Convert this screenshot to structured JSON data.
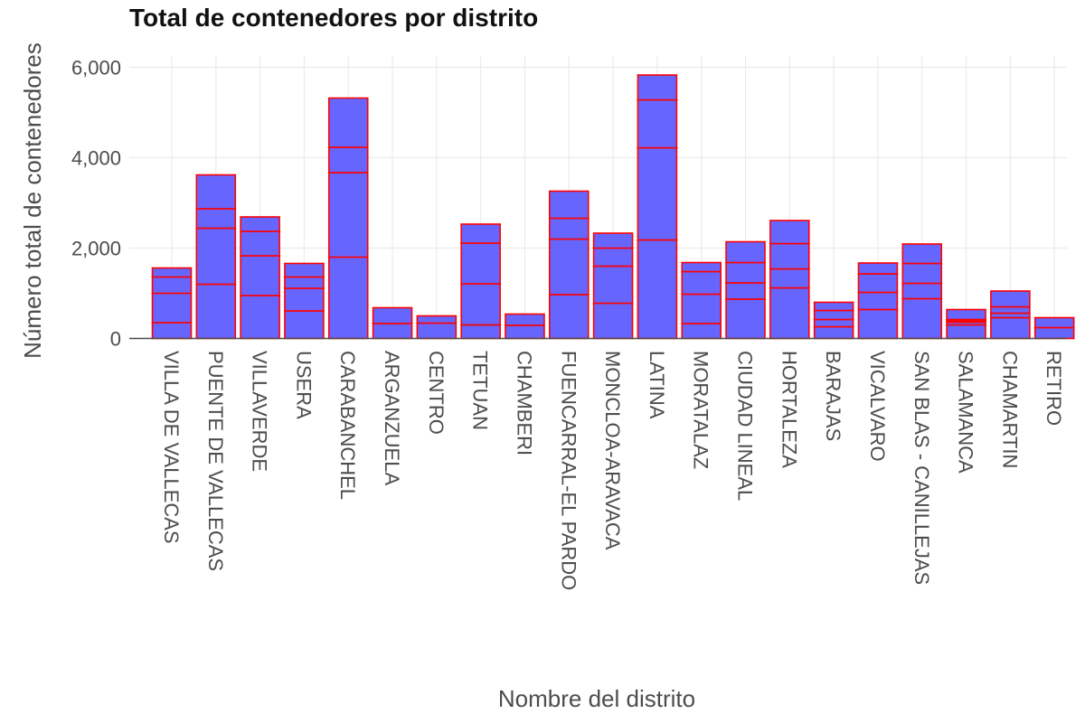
{
  "chart_data": {
    "type": "bar",
    "stacked": true,
    "title": "Total de contenedores por distrito",
    "xlabel": "Nombre del distrito",
    "ylabel": "Número total de contenedores",
    "ylim": [
      0,
      6000
    ],
    "yticks": [
      0,
      2000,
      4000,
      6000
    ],
    "ytick_labels": [
      "0",
      "2,000",
      "4,000",
      "6,000"
    ],
    "grid": true,
    "legend": "none",
    "bar_fill": "#6666ff",
    "bar_outline": "#ff0000",
    "axis_line_color": "#4d4d4d",
    "categories": [
      "VILLA DE VALLECAS",
      "PUENTE DE VALLECAS",
      "VILLAVERDE",
      "USERA",
      "CARABANCHEL",
      "ARGANZUELA",
      "CENTRO",
      "TETUAN",
      "CHAMBERI",
      "FUENCARRAL-EL PARDO",
      "MONCLOA-ARAVACA",
      "LATINA",
      "MORATALAZ",
      "CIUDAD LINEAL",
      "HORTALEZA",
      "BARAJAS",
      "VICALVARO",
      "SAN BLAS - CANILLEJAS",
      "SALAMANCA",
      "CHAMARTIN",
      "RETIRO"
    ],
    "segment_boundaries": [
      [
        350,
        1000,
        1360,
        1560
      ],
      [
        1200,
        2440,
        2870,
        3620
      ],
      [
        950,
        1830,
        2370,
        2690
      ],
      [
        610,
        1110,
        1360,
        1660
      ],
      [
        1800,
        3670,
        4230,
        5320
      ],
      [
        330,
        680
      ],
      [
        340,
        500
      ],
      [
        300,
        1210,
        2110,
        2530
      ],
      [
        290,
        540
      ],
      [
        970,
        2200,
        2660,
        3260
      ],
      [
        780,
        1600,
        2000,
        2330
      ],
      [
        2180,
        4220,
        5280,
        5830
      ],
      [
        330,
        980,
        1480,
        1680
      ],
      [
        870,
        1230,
        1680,
        2140
      ],
      [
        1120,
        1540,
        2100,
        2610
      ],
      [
        260,
        420,
        620,
        800
      ],
      [
        640,
        1020,
        1430,
        1670
      ],
      [
        880,
        1220,
        1660,
        2090
      ],
      [
        300,
        360,
        390,
        420,
        640
      ],
      [
        460,
        560,
        700,
        1050
      ],
      [
        240,
        460
      ]
    ],
    "totals": [
      1560,
      3620,
      2690,
      1660,
      5320,
      680,
      500,
      2530,
      540,
      3260,
      2330,
      5830,
      1680,
      2140,
      2610,
      800,
      1670,
      2090,
      640,
      1050,
      460
    ]
  }
}
